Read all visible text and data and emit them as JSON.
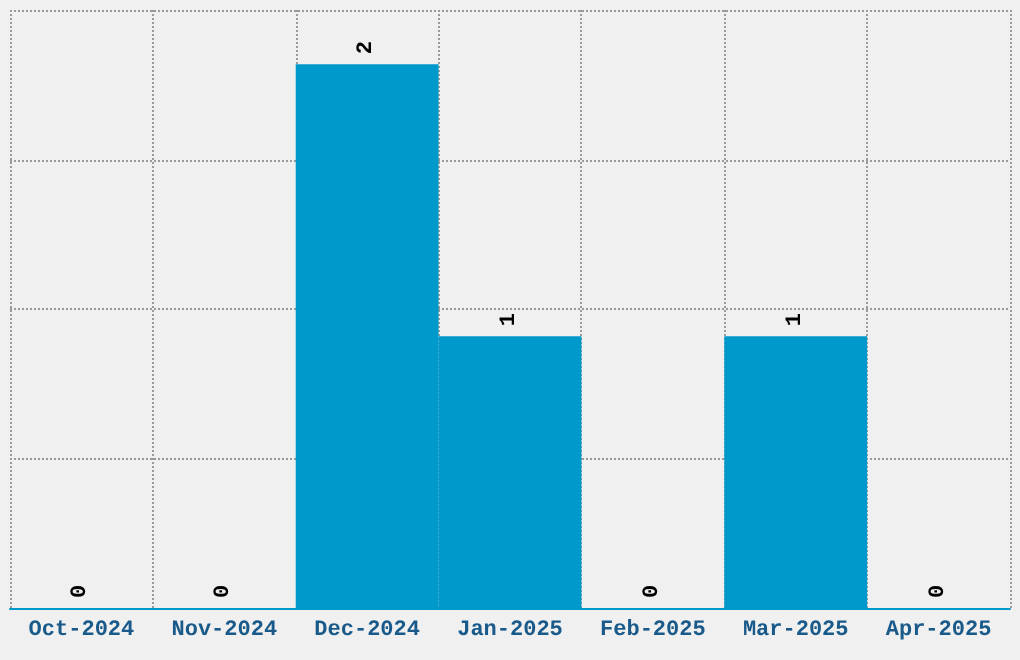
{
  "chart_data": {
    "type": "bar",
    "categories": [
      "Oct-2024",
      "Nov-2024",
      "Dec-2024",
      "Jan-2025",
      "Feb-2025",
      "Mar-2025",
      "Apr-2025"
    ],
    "values": [
      0,
      0,
      2,
      1,
      0,
      1,
      0
    ],
    "color": "#0099cc",
    "data_labels": true,
    "grid": true,
    "tick_labels": "x",
    "ylim": [
      0,
      2.2
    ],
    "yticks": [
      {
        "value": 0,
        "label": null
      },
      {
        "value": 0.55,
        "label": null
      },
      {
        "value": 1.1,
        "label": null
      },
      {
        "value": 1.65,
        "label": null
      },
      {
        "value": 2.2,
        "label": null
      }
    ]
  }
}
